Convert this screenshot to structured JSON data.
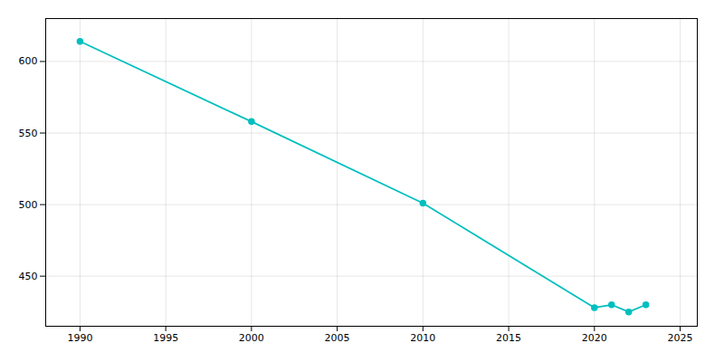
{
  "chart_data": {
    "type": "line",
    "x": [
      1990,
      2000,
      2010,
      2020,
      2021,
      2022,
      2023
    ],
    "values": [
      614,
      558,
      501,
      428,
      430,
      425,
      430
    ],
    "color": "#00BFBF",
    "marker": "circle",
    "xlim": [
      1988,
      2026
    ],
    "ylim": [
      415,
      630
    ],
    "xticks": [
      1990,
      1995,
      2000,
      2005,
      2010,
      2015,
      2020,
      2025
    ],
    "yticks": [
      450,
      500,
      550,
      600
    ],
    "grid": true
  }
}
